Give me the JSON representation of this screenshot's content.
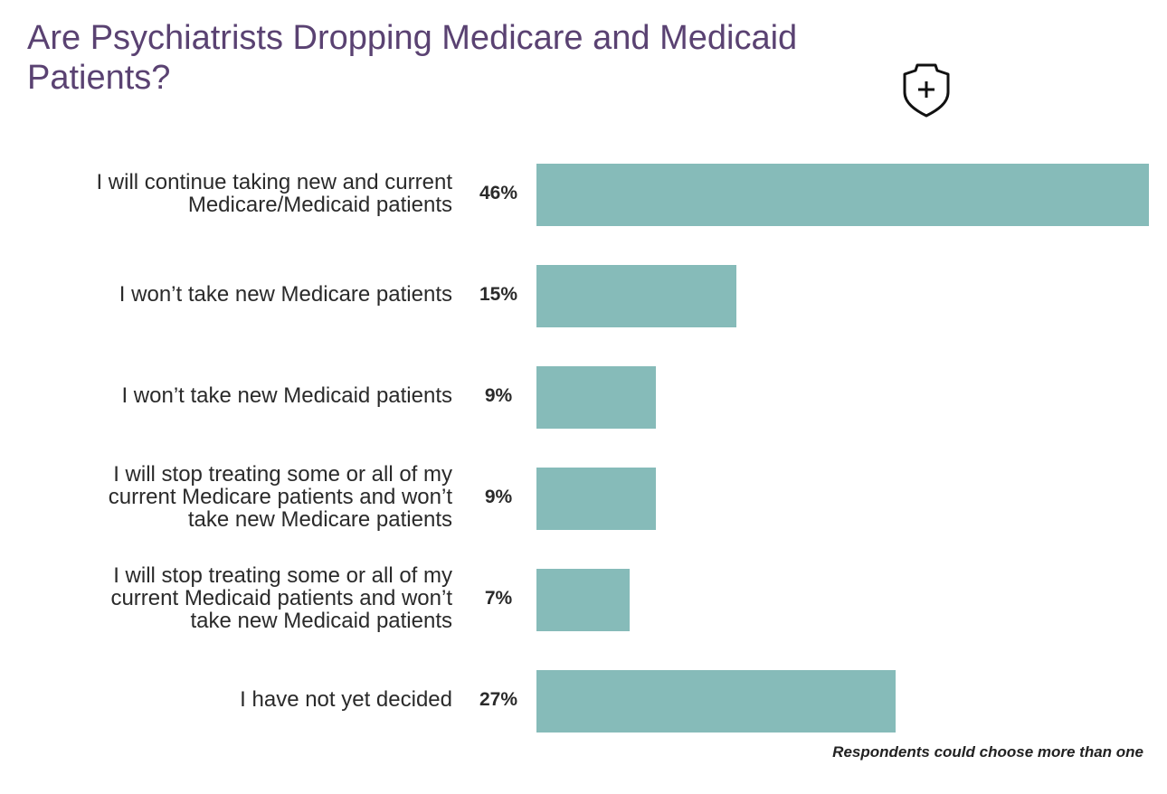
{
  "chart_data": {
    "type": "bar",
    "orientation": "horizontal",
    "title": "Are Psychiatrists Dropping Medicare and Medicaid Patients?",
    "categories": [
      "I will continue taking new and current Medicare/Medicaid patients",
      "I won’t take new Medicare patients",
      "I won’t take new Medicaid patients",
      "I will stop treating some or all of my current Medicare patients and won’t take new Medicare patients",
      "I will stop treating some or all of my current Medicaid patients and won’t take new Medicaid patients",
      "I have not yet decided"
    ],
    "values": [
      46,
      15,
      9,
      9,
      7,
      27
    ],
    "value_labels": [
      "46%",
      "15%",
      "9%",
      "9%",
      "7%",
      "27%"
    ],
    "unit": "%",
    "xlim": [
      0,
      46
    ],
    "grid": false,
    "bar_color": "#86bbb9",
    "title_color": "#5a4272",
    "annotation": "Respondents could choose more than one",
    "icon": "shield-plus-icon"
  }
}
